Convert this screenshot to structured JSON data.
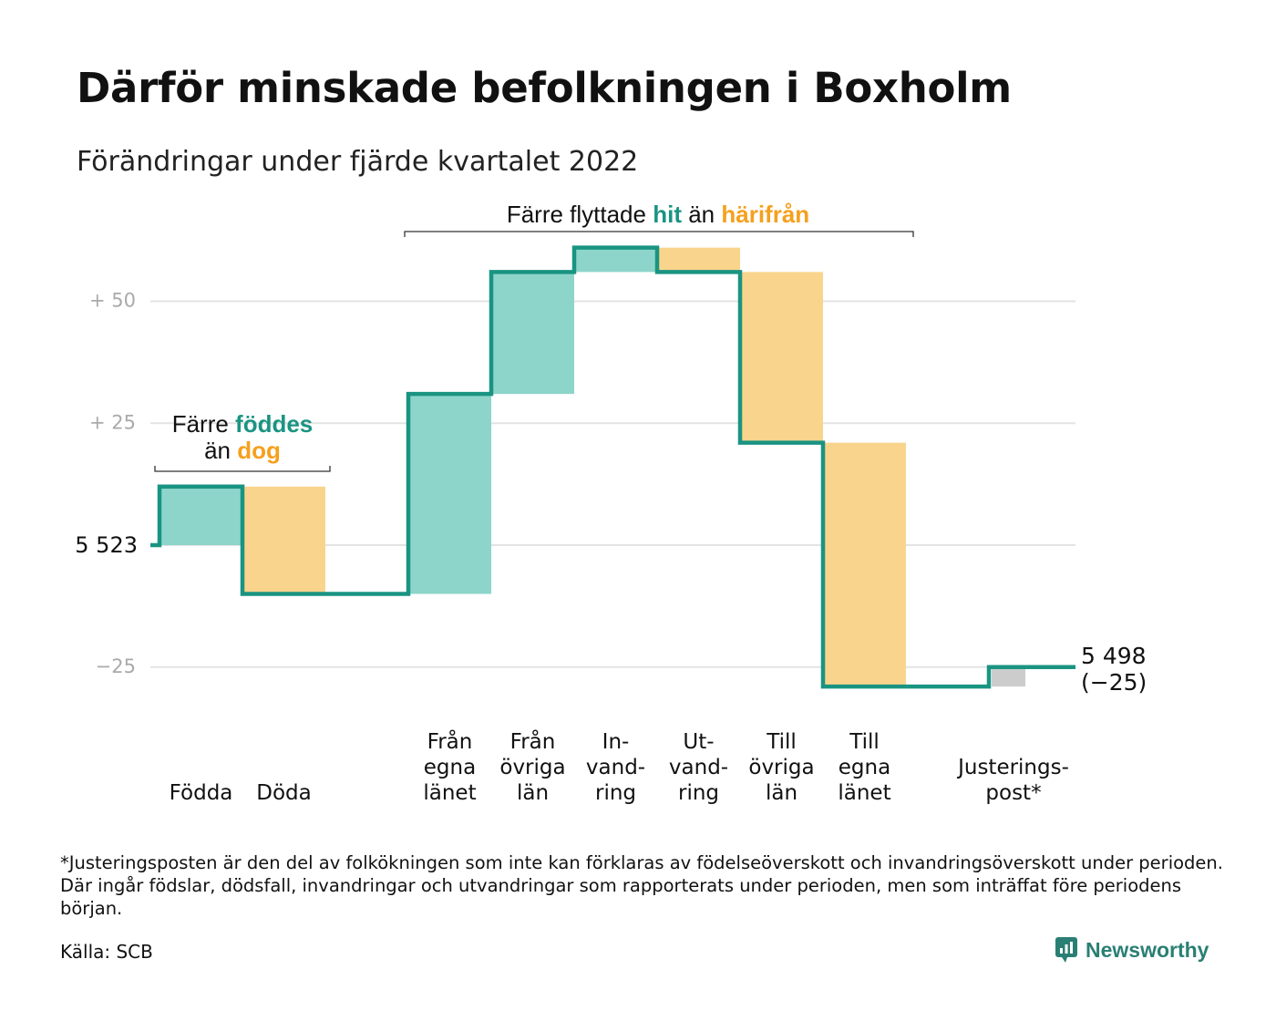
{
  "title": "Därför minskade befolkningen i Boxholm",
  "subtitle": "Förändringar under fjärde kvartalet 2022",
  "colors": {
    "inflow": "#8dd5ca",
    "outflow": "#f9d48c",
    "adjustment": "#cccccc",
    "line": "#1a9482",
    "accent_teal": "#1a9482",
    "accent_orange": "#f5a01e",
    "grid": "#e3e3e3",
    "tick": "#aaaaaa"
  },
  "annotations": {
    "births_deaths": {
      "line1_pre": "Färre ",
      "line1_em": "föddes",
      "line2_pre": "än ",
      "line2_em": "dog"
    },
    "migration": {
      "pre": "Färre flyttade ",
      "em1": "hit",
      "mid": " än ",
      "em2": "härifrån"
    }
  },
  "start_label": "5 523",
  "end_label": {
    "line1": "5 498",
    "line2": "(−25)"
  },
  "footnote": "*Justeringsposten är den del av folkökningen som inte kan förklaras av födelseöverskott och invandringsöverskott under perioden. Där ingår födslar, dödsfall, invandringar och utvandringar som rapporterats under perioden, men som inträffat före periodens början.",
  "source": "Källa: SCB",
  "brand": "Newsworthy",
  "chart_data": {
    "type": "waterfall",
    "start_value": 5523,
    "end_value": 5498,
    "net_change": -25,
    "yticks": [
      {
        "value": 50,
        "label": "+ 50"
      },
      {
        "value": 25,
        "label": "+ 25"
      },
      {
        "value": 0,
        "label": "5 523"
      },
      {
        "value": -25,
        "label": "−25"
      }
    ],
    "ylim": [
      -30,
      62
    ],
    "grid": true,
    "steps": [
      {
        "label": [
          "Födda"
        ],
        "change": 12,
        "kind": "inflow"
      },
      {
        "label": [
          "Döda"
        ],
        "change": -22,
        "kind": "outflow"
      },
      {
        "label": [],
        "change": 0,
        "kind": "gap"
      },
      {
        "label": [
          "Från",
          "egna",
          "länet"
        ],
        "change": 41,
        "kind": "inflow"
      },
      {
        "label": [
          "Från",
          "övriga",
          "län"
        ],
        "change": 25,
        "kind": "inflow"
      },
      {
        "label": [
          "In-",
          "vand-",
          "ring"
        ],
        "change": 5,
        "kind": "inflow"
      },
      {
        "label": [
          "Ut-",
          "vand-",
          "ring"
        ],
        "change": -5,
        "kind": "outflow"
      },
      {
        "label": [
          "Till",
          "övriga",
          "län"
        ],
        "change": -35,
        "kind": "outflow"
      },
      {
        "label": [
          "Till",
          "egna",
          "länet"
        ],
        "change": -50,
        "kind": "outflow"
      },
      {
        "label": [],
        "change": 0,
        "kind": "gap"
      },
      {
        "label": [
          "Justerings-",
          "post*"
        ],
        "change": 4,
        "kind": "adjustment"
      }
    ]
  }
}
